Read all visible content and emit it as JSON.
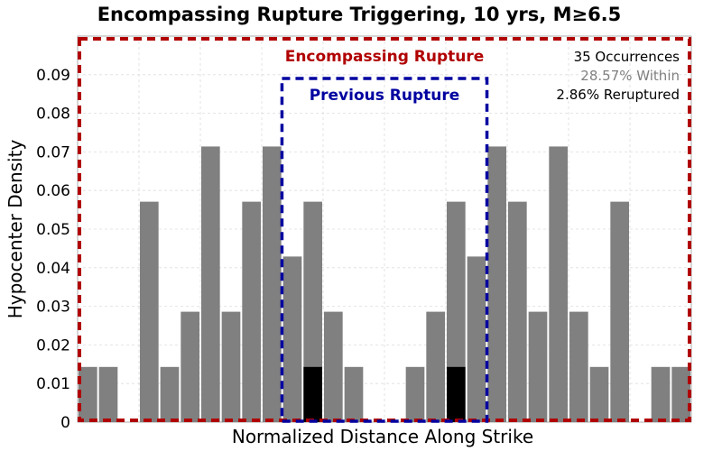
{
  "chart_data": {
    "type": "bar",
    "title": "Encompassing Rupture Triggering, 10 yrs, M≥6.5",
    "xlabel": "Normalized Distance Along Strike",
    "ylabel": "Hypocenter Density",
    "xlim": [
      0,
      1
    ],
    "ylim": [
      0,
      0.1
    ],
    "yticks": [
      "0",
      "0.01",
      "0.02",
      "0.03",
      "0.04",
      "0.05",
      "0.06",
      "0.07",
      "0.08",
      "0.09"
    ],
    "ytick_values": [
      0,
      0.01,
      0.02,
      0.03,
      0.04,
      0.05,
      0.06,
      0.07,
      0.08,
      0.09
    ],
    "grid": true,
    "bins": 30,
    "series": [
      {
        "color": "#808080",
        "values": [
          0.0143,
          0.0143,
          0,
          0.0571,
          0.0143,
          0.0286,
          0.0714,
          0.0286,
          0.0571,
          0.0714,
          0.0429,
          0.0571,
          0.0286,
          0.0143,
          0,
          0,
          0.0143,
          0.0286,
          0.0571,
          0.0429,
          0.0714,
          0.0571,
          0.0286,
          0.0714,
          0.0286,
          0.0143,
          0.0571,
          0,
          0.0143,
          0.0143
        ]
      },
      {
        "color": "#000000",
        "values": [
          0,
          0,
          0,
          0,
          0,
          0,
          0,
          0,
          0,
          0,
          0,
          0.0143,
          0,
          0,
          0,
          0,
          0,
          0,
          0.0143,
          0,
          0,
          0,
          0,
          0,
          0,
          0,
          0,
          0,
          0,
          0
        ]
      }
    ],
    "regions": [
      {
        "name": "Encompassing Rupture",
        "x0": 0.0,
        "x1": 1.0,
        "color": "#b00000"
      },
      {
        "name": "Previous Rupture",
        "x0": 0.333,
        "x1": 0.667,
        "color": "#0000a0"
      }
    ],
    "annotations": {
      "occurrences": "35 Occurrences",
      "within": "28.57% Within",
      "reruptured": "2.86% Reruptured"
    },
    "colors": {
      "bar": "#808080",
      "rerupture_bar": "#000000",
      "encompassing": "#b00000",
      "previous": "#0000a0",
      "within_text": "#808080",
      "grid": "#dddddd"
    }
  }
}
